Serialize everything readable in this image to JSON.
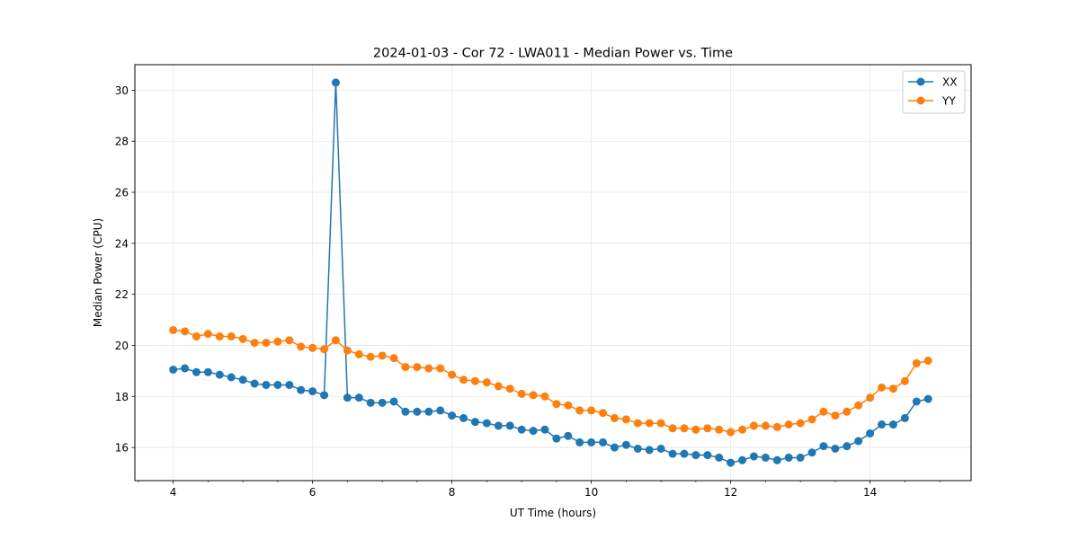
{
  "chart_data": {
    "type": "line",
    "title": "2024-01-03 - Cor 72 - LWA011 - Median Power vs. Time",
    "xlabel": "UT Time (hours)",
    "ylabel": "Median Power (CPU)",
    "xlim": [
      3.45,
      15.45
    ],
    "ylim": [
      14.7,
      31.0
    ],
    "xticks": [
      4,
      6,
      8,
      10,
      12,
      14
    ],
    "yticks": [
      16,
      18,
      20,
      22,
      24,
      26,
      28,
      30
    ],
    "grid": true,
    "legend_position": "upper-right",
    "x": [
      4.0,
      4.167,
      4.333,
      4.5,
      4.667,
      4.833,
      5.0,
      5.167,
      5.333,
      5.5,
      5.667,
      5.833,
      6.0,
      6.167,
      6.333,
      6.5,
      6.667,
      6.833,
      7.0,
      7.167,
      7.333,
      7.5,
      7.667,
      7.833,
      8.0,
      8.167,
      8.333,
      8.5,
      8.667,
      8.833,
      9.0,
      9.167,
      9.333,
      9.5,
      9.667,
      9.833,
      10.0,
      10.167,
      10.333,
      10.5,
      10.667,
      10.833,
      11.0,
      11.167,
      11.333,
      11.5,
      11.667,
      11.833,
      12.0,
      12.167,
      12.333,
      12.5,
      12.667,
      12.833,
      13.0,
      13.167,
      13.333,
      13.5,
      13.667,
      13.833,
      14.0,
      14.167,
      14.333,
      14.5,
      14.667,
      14.833
    ],
    "series": [
      {
        "name": "XX",
        "color": "#1f77b4",
        "values": [
          19.05,
          19.1,
          18.95,
          18.95,
          18.85,
          18.75,
          18.65,
          18.5,
          18.45,
          18.45,
          18.45,
          18.25,
          18.2,
          18.05,
          30.3,
          17.95,
          17.95,
          17.75,
          17.75,
          17.8,
          17.4,
          17.4,
          17.4,
          17.45,
          17.25,
          17.15,
          17.0,
          16.95,
          16.85,
          16.85,
          16.7,
          16.65,
          16.7,
          16.35,
          16.45,
          16.2,
          16.2,
          16.2,
          16.0,
          16.1,
          15.95,
          15.9,
          15.95,
          15.75,
          15.75,
          15.7,
          15.7,
          15.6,
          15.4,
          15.5,
          15.65,
          15.6,
          15.5,
          15.6,
          15.6,
          15.8,
          16.05,
          15.95,
          16.05,
          16.25,
          16.55,
          16.9,
          16.9,
          17.15,
          17.8,
          17.9
        ]
      },
      {
        "name": "YY",
        "color": "#ff7f0e",
        "values": [
          20.6,
          20.55,
          20.35,
          20.45,
          20.35,
          20.35,
          20.25,
          20.1,
          20.1,
          20.15,
          20.2,
          19.95,
          19.9,
          19.85,
          20.2,
          19.8,
          19.65,
          19.55,
          19.6,
          19.5,
          19.15,
          19.15,
          19.1,
          19.1,
          18.85,
          18.65,
          18.6,
          18.55,
          18.4,
          18.3,
          18.1,
          18.05,
          18.0,
          17.7,
          17.65,
          17.45,
          17.45,
          17.35,
          17.15,
          17.1,
          16.95,
          16.95,
          16.95,
          16.75,
          16.75,
          16.7,
          16.75,
          16.7,
          16.6,
          16.7,
          16.85,
          16.85,
          16.8,
          16.9,
          16.95,
          17.1,
          17.4,
          17.25,
          17.4,
          17.65,
          17.95,
          18.35,
          18.3,
          18.6,
          19.3,
          19.4
        ]
      }
    ]
  }
}
